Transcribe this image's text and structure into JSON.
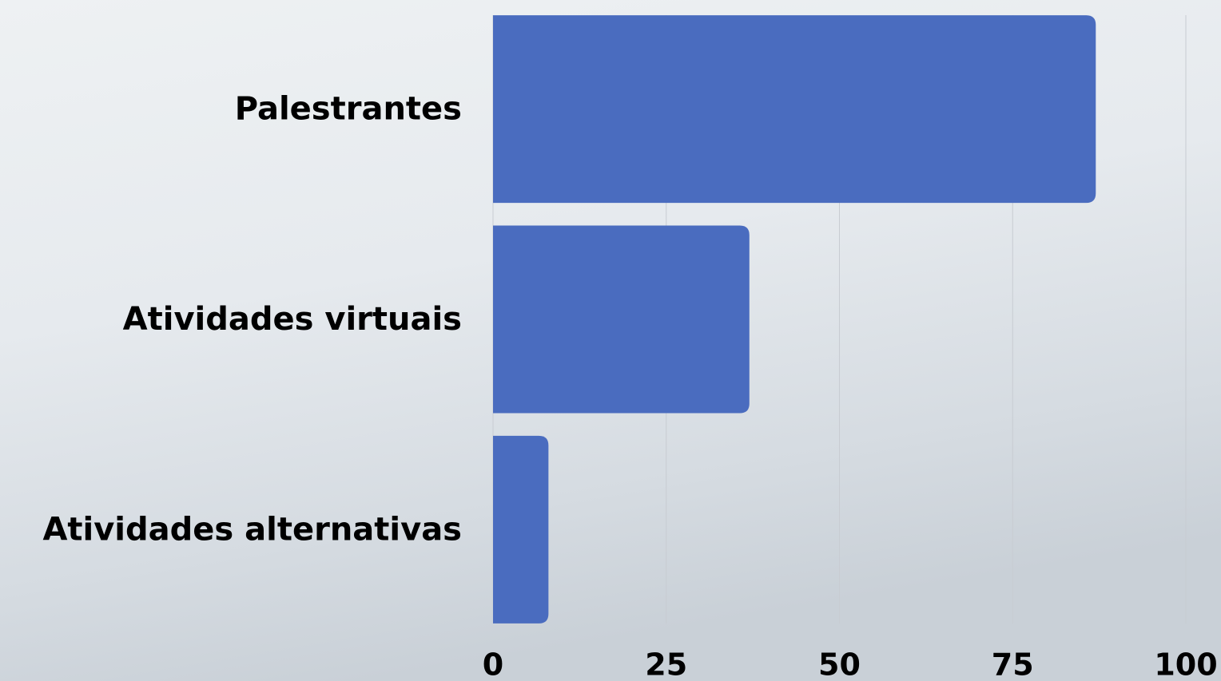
{
  "chart_data": {
    "type": "barh",
    "categories": [
      "Palestrantes",
      "Atividades virtuais",
      "Atividades alternativas"
    ],
    "values": [
      87,
      37,
      8
    ],
    "color": "#4a6cbf",
    "xlim": [
      0,
      100
    ],
    "xticks": [
      0,
      25,
      50,
      75,
      100
    ],
    "grid": true
  }
}
